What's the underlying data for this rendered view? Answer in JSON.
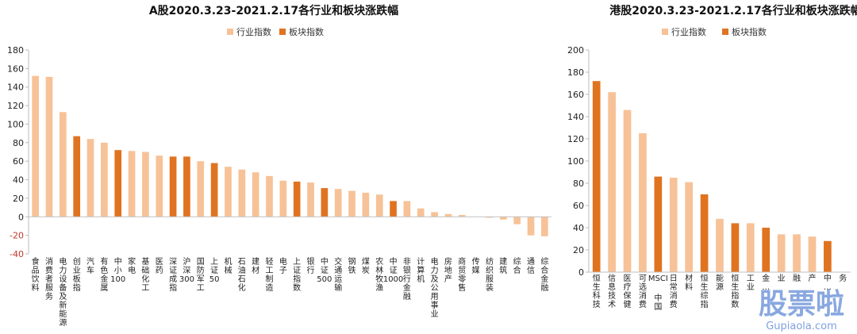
{
  "chart_data": [
    {
      "type": "bar",
      "title": "A股2020.3.23-2021.2.17各行业和板块涨跌幅",
      "legend": [
        "行业指数",
        "板块指数"
      ],
      "legend_position": "top",
      "ylim": [
        -40,
        180
      ],
      "yticks": [
        -40,
        -20,
        0,
        20,
        40,
        60,
        80,
        100,
        120,
        140,
        160,
        180
      ],
      "colors": {
        "行业指数": "#f7c297",
        "板块指数": "#e07320",
        "negative_tick": "#c0392b"
      },
      "grid": false,
      "categories": [
        "食品饮料",
        "消费者服务",
        "电力设备及新能源",
        "创业板指",
        "汽车",
        "有色金属",
        "中小100",
        "家电",
        "基础化工",
        "医药",
        "深证成指",
        "沪深300",
        "国防军工",
        "上证50",
        "机械",
        "石油石化",
        "建材",
        "轻工制造",
        "电子",
        "上证指数",
        "银行",
        "中证500",
        "交通运输",
        "钢铁",
        "煤炭",
        "农林牧渔",
        "中证1000",
        "非银行金融",
        "计算机",
        "电力及公用事业",
        "房地产",
        "商贸零售",
        "传媒",
        "纺织服装",
        "建筑",
        "综合",
        "通信",
        "综合金融"
      ],
      "series_type": [
        "行业指数",
        "行业指数",
        "行业指数",
        "板块指数",
        "行业指数",
        "行业指数",
        "板块指数",
        "行业指数",
        "行业指数",
        "行业指数",
        "板块指数",
        "板块指数",
        "行业指数",
        "板块指数",
        "行业指数",
        "行业指数",
        "行业指数",
        "行业指数",
        "行业指数",
        "板块指数",
        "行业指数",
        "板块指数",
        "行业指数",
        "行业指数",
        "行业指数",
        "行业指数",
        "板块指数",
        "行业指数",
        "行业指数",
        "行业指数",
        "行业指数",
        "行业指数",
        "行业指数",
        "行业指数",
        "行业指数",
        "行业指数",
        "行业指数",
        "行业指数"
      ],
      "values": [
        152,
        151,
        113,
        87,
        84,
        80,
        72,
        71,
        70,
        66,
        65,
        65,
        60,
        58,
        54,
        51,
        48,
        44,
        39,
        38,
        37,
        31,
        30,
        28,
        26,
        24,
        17,
        17,
        9,
        5,
        3,
        2,
        0,
        -1,
        -3,
        -8,
        -20,
        -21
      ]
    },
    {
      "type": "bar",
      "title": "港股2020.3.23-2021.2.17各行业和板块涨跌幅",
      "legend": [
        "行业指数",
        "板块指数"
      ],
      "legend_position": "top",
      "ylim": [
        0,
        200
      ],
      "yticks": [
        0,
        20,
        40,
        60,
        80,
        100,
        120,
        140,
        160,
        180,
        200
      ],
      "colors": {
        "行业指数": "#f7c297",
        "板块指数": "#e07320"
      },
      "grid": false,
      "categories": [
        "恒生科技",
        "信息技术",
        "医疗保健",
        "可选消费",
        "MSCI中国",
        "日常消费",
        "材料",
        "恒生综指",
        "能源",
        "恒生指数",
        "工业",
        "金…",
        "业",
        "融",
        "产",
        "中…",
        "务"
      ],
      "series_type": [
        "板块指数",
        "行业指数",
        "行业指数",
        "行业指数",
        "板块指数",
        "行业指数",
        "行业指数",
        "板块指数",
        "行业指数",
        "板块指数",
        "行业指数",
        "板块指数",
        "行业指数",
        "行业指数",
        "行业指数",
        "板块指数",
        "行业指数"
      ],
      "values": [
        172,
        162,
        146,
        125,
        86,
        85,
        81,
        70,
        48,
        44,
        44,
        40,
        34,
        34,
        32,
        28,
        0
      ]
    }
  ],
  "watermark": {
    "big": "股票啦",
    "small": "Gupiaola.com"
  }
}
